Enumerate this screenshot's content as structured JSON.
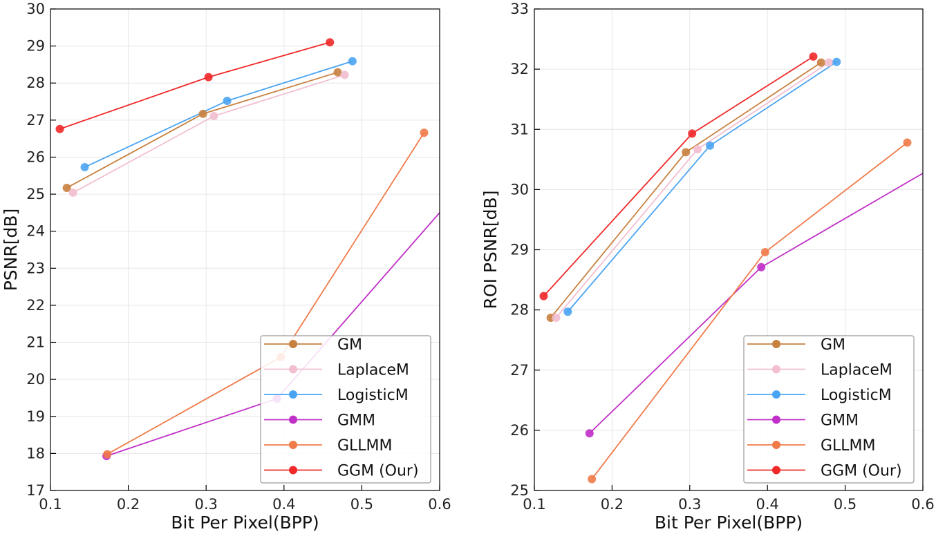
{
  "chart_data": [
    {
      "type": "line",
      "xlabel": "Bit Per Pixel(BPP)",
      "ylabel": "PSNR[dB]",
      "xlim": [
        0.1,
        0.6
      ],
      "ylim": [
        17,
        30
      ],
      "xticks": [
        "0.1",
        "0.2",
        "0.3",
        "0.4",
        "0.5",
        "0.6"
      ],
      "yticks": [
        "17",
        "18",
        "19",
        "20",
        "21",
        "22",
        "23",
        "24",
        "25",
        "26",
        "27",
        "28",
        "29",
        "30"
      ],
      "grid": true,
      "legend_position": "lower-right",
      "series": [
        {
          "name": "GM",
          "color": "#c8813f",
          "x": [
            0.121,
            0.296,
            0.469
          ],
          "y": [
            25.17,
            27.17,
            28.29
          ]
        },
        {
          "name": "LaplaceM",
          "color": "#f2bed0",
          "x": [
            0.129,
            0.31,
            0.478
          ],
          "y": [
            25.04,
            27.11,
            28.22
          ]
        },
        {
          "name": "LogisticM",
          "color": "#4aa4f2",
          "x": [
            0.144,
            0.327,
            0.488
          ],
          "y": [
            25.73,
            27.52,
            28.59
          ]
        },
        {
          "name": "GMM",
          "color": "#c030c8",
          "x": [
            0.172,
            0.391,
            0.6
          ],
          "y": [
            17.93,
            19.48,
            24.5
          ],
          "end_markers": [
            true,
            true,
            false
          ]
        },
        {
          "name": "GLLMM",
          "color": "#f07a48",
          "x": [
            0.173,
            0.396,
            0.58
          ],
          "y": [
            17.98,
            20.6,
            26.66
          ]
        },
        {
          "name": "GGM (Our)",
          "color": "#f02828",
          "x": [
            0.112,
            0.303,
            0.459
          ],
          "y": [
            26.76,
            28.16,
            29.1
          ]
        }
      ]
    },
    {
      "type": "line",
      "xlabel": "Bit Per Pixel(BPP)",
      "ylabel": "ROI PSNR[dB]",
      "xlim": [
        0.1,
        0.6
      ],
      "ylim": [
        25,
        33
      ],
      "xticks": [
        "0.1",
        "0.2",
        "0.3",
        "0.4",
        "0.5",
        "0.6"
      ],
      "yticks": [
        "25",
        "26",
        "27",
        "28",
        "29",
        "30",
        "31",
        "32",
        "33"
      ],
      "grid": true,
      "legend_position": "lower-right",
      "series": [
        {
          "name": "GM",
          "color": "#c8813f",
          "x": [
            0.121,
            0.295,
            0.469
          ],
          "y": [
            27.87,
            30.62,
            32.11
          ]
        },
        {
          "name": "LaplaceM",
          "color": "#f2bed0",
          "x": [
            0.128,
            0.31,
            0.479
          ],
          "y": [
            27.87,
            30.67,
            32.11
          ]
        },
        {
          "name": "LogisticM",
          "color": "#4aa4f2",
          "x": [
            0.143,
            0.326,
            0.489
          ],
          "y": [
            27.97,
            30.73,
            32.12
          ]
        },
        {
          "name": "GMM",
          "color": "#c030c8",
          "x": [
            0.171,
            0.392,
            0.6
          ],
          "y": [
            25.95,
            28.71,
            30.27
          ],
          "end_markers": [
            true,
            true,
            false
          ]
        },
        {
          "name": "GLLMM",
          "color": "#f07a48",
          "x": [
            0.174,
            0.397,
            0.58
          ],
          "y": [
            25.19,
            28.96,
            30.78
          ]
        },
        {
          "name": "GGM (Our)",
          "color": "#f02828",
          "x": [
            0.112,
            0.303,
            0.459
          ],
          "y": [
            28.23,
            30.93,
            32.21
          ]
        }
      ]
    }
  ]
}
